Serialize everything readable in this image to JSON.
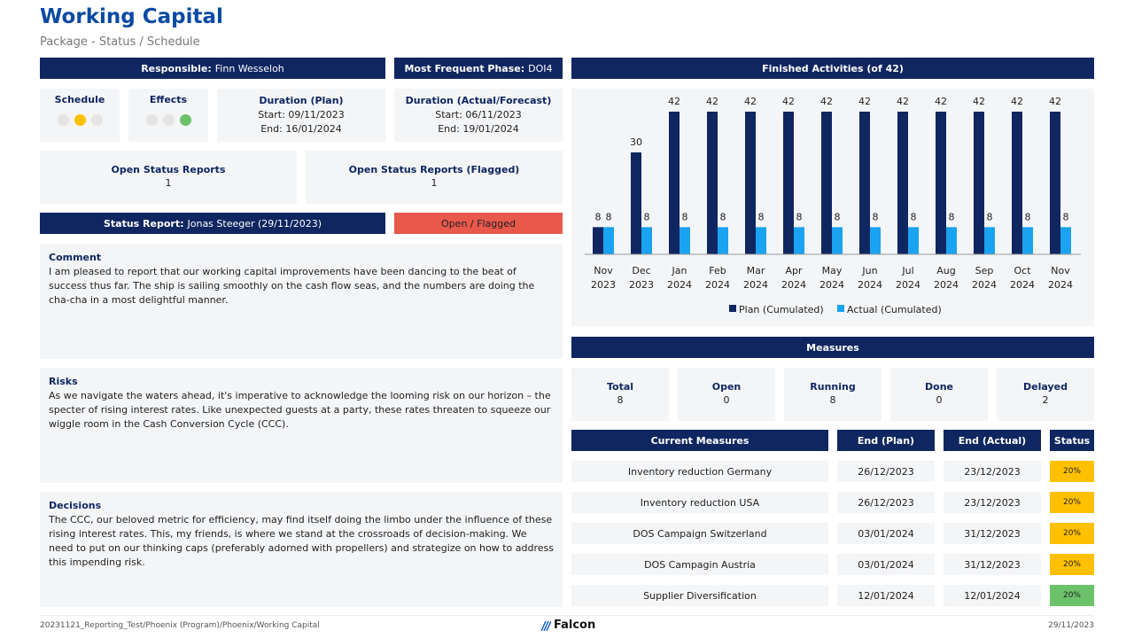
{
  "title": "Working Capital",
  "subtitle": "Package - Status / Schedule",
  "responsible": {
    "label": "Responsible:",
    "value": "Finn Wesseloh"
  },
  "phase": {
    "label": "Most Frequent Phase:",
    "value": "DOI4"
  },
  "schedule": {
    "label": "Schedule",
    "lights": [
      "#e4e4e4",
      "#ffc000",
      "#e4e4e4"
    ]
  },
  "effects": {
    "label": "Effects",
    "lights": [
      "#e4e4e4",
      "#e4e4e4",
      "#6cc26a"
    ]
  },
  "duration_plan": {
    "label": "Duration (Plan)",
    "start": "Start: 09/11/2023",
    "end": "End: 16/01/2024"
  },
  "duration_actual": {
    "label": "Duration (Actual/Forecast)",
    "start": "Start: 06/11/2023",
    "end": "End: 19/01/2024"
  },
  "open_reports": {
    "label": "Open Status Reports",
    "value": "1"
  },
  "open_reports_flagged": {
    "label": "Open Status Reports (Flagged)",
    "value": "1"
  },
  "status_report": {
    "label": "Status Report:",
    "value": "Jonas Steeger  (29/11/2023)",
    "state": "Open / Flagged",
    "state_color": "#e8584b"
  },
  "comment": {
    "label": "Comment",
    "text": "I am pleased to report that our working capital improvements have been dancing to the beat of success thus far. The ship is sailing smoothly on the cash flow seas, and the numbers are doing the cha-cha in a most delightful manner."
  },
  "risks": {
    "label": "Risks",
    "text": "As we navigate the waters ahead, it's imperative to acknowledge the looming risk on our horizon – the specter of rising interest rates. Like unexpected guests at a party, these rates threaten to squeeze our wiggle room in the Cash Conversion Cycle (CCC)."
  },
  "decisions": {
    "label": "Decisions",
    "text": "The CCC, our beloved metric for efficiency, may find itself doing the limbo under the influence of these rising interest rates. This, my friends, is where we stand at the crossroads of decision-making. We need to put on our thinking caps (preferably adorned with propellers) and strategize on how to address this impending risk."
  },
  "chart_header": "Finished Activities (of 42)",
  "chart_data": {
    "type": "bar",
    "categories": [
      [
        "Nov",
        "2023"
      ],
      [
        "Dec",
        "2023"
      ],
      [
        "Jan",
        "2024"
      ],
      [
        "Feb",
        "2024"
      ],
      [
        "Mar",
        "2024"
      ],
      [
        "Apr",
        "2024"
      ],
      [
        "May",
        "2024"
      ],
      [
        "Jun",
        "2024"
      ],
      [
        "Jul",
        "2024"
      ],
      [
        "Aug",
        "2024"
      ],
      [
        "Sep",
        "2024"
      ],
      [
        "Oct",
        "2024"
      ],
      [
        "Nov",
        "2024"
      ]
    ],
    "series": [
      {
        "name": "Plan (Cumulated)",
        "color": "#0f2660",
        "values": [
          8,
          30,
          42,
          42,
          42,
          42,
          42,
          42,
          42,
          42,
          42,
          42,
          42
        ]
      },
      {
        "name": "Actual (Cumulated)",
        "color": "#1aa3f0",
        "values": [
          8,
          8,
          8,
          8,
          8,
          8,
          8,
          8,
          8,
          8,
          8,
          8,
          8
        ]
      }
    ],
    "ylim": [
      0,
      42
    ],
    "legend": "bottom",
    "grid": false
  },
  "measures": {
    "header": "Measures",
    "stats": [
      {
        "label": "Total",
        "value": "8"
      },
      {
        "label": "Open",
        "value": "0"
      },
      {
        "label": "Running",
        "value": "8"
      },
      {
        "label": "Done",
        "value": "0"
      },
      {
        "label": "Delayed",
        "value": "2"
      }
    ],
    "columns": [
      "Current Measures",
      "End (Plan)",
      "End (Actual)",
      "Status"
    ],
    "rows": [
      {
        "name": "Inventory reduction Germany",
        "plan": "26/12/2023",
        "actual": "23/12/2023",
        "status": "20%",
        "color": "#ffc000"
      },
      {
        "name": "Inventory reduction USA",
        "plan": "26/12/2023",
        "actual": "23/12/2023",
        "status": "20%",
        "color": "#ffc000"
      },
      {
        "name": "DOS Campaign Switzerland",
        "plan": "03/01/2024",
        "actual": "31/12/2023",
        "status": "20%",
        "color": "#ffc000"
      },
      {
        "name": "DOS Campagin Austria",
        "plan": "03/01/2024",
        "actual": "31/12/2023",
        "status": "20%",
        "color": "#ffc000"
      },
      {
        "name": "Supplier Diversification",
        "plan": "12/01/2024",
        "actual": "12/01/2024",
        "status": "20%",
        "color": "#6cc26a"
      }
    ]
  },
  "footer": {
    "path": "20231121_Reporting_Test/Phoenix (Program)/Phoenix/Working Capital",
    "brand": "Falcon",
    "date": "29/11/2023"
  }
}
